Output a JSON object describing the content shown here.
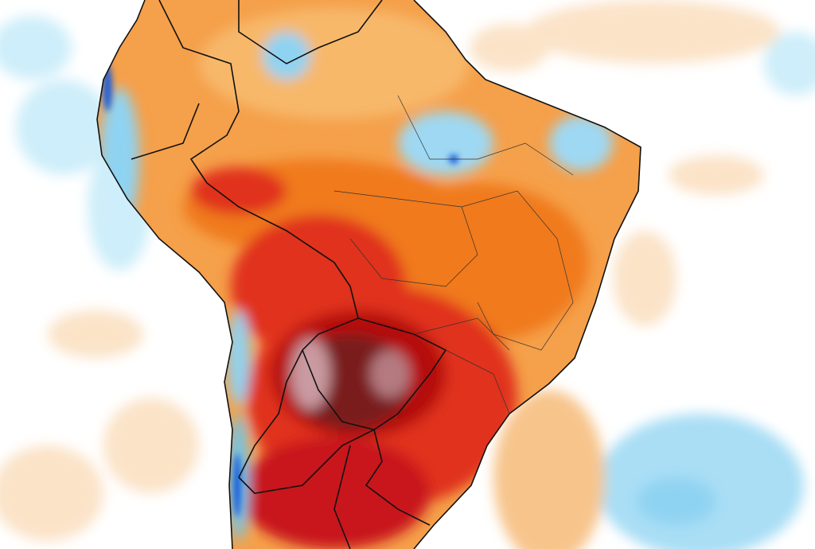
{
  "map": {
    "region": "South America",
    "kind": "temperature anomaly field",
    "colors": {
      "background": "#ffffff",
      "ocean_warm": "#fbe3c8",
      "ocean_warm_strong": "#f7c58c",
      "ocean_cool": "#cdeefa",
      "ocean_cool_strong": "#8fd3f2",
      "land_warm": "#f5a04a",
      "land_orange": "#f07a1e",
      "land_red": "#e0301a",
      "land_deep_red": "#b5100f",
      "land_maroon": "#7a1a1e",
      "land_pink": "#c99aa0",
      "land_cool": "#6cc7ef",
      "land_blue": "#1f5fd8",
      "borders": "#111111",
      "contours": "#ffffff"
    }
  }
}
